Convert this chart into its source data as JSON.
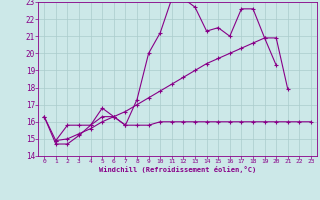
{
  "xlabel": "Windchill (Refroidissement éolien,°C)",
  "bg_color": "#cce8e8",
  "grid_color": "#aacccc",
  "line_color": "#880088",
  "xlim": [
    -0.5,
    23.5
  ],
  "ylim": [
    14,
    23
  ],
  "xticks": [
    0,
    1,
    2,
    3,
    4,
    5,
    6,
    7,
    8,
    9,
    10,
    11,
    12,
    13,
    14,
    15,
    16,
    17,
    18,
    19,
    20,
    21,
    22,
    23
  ],
  "yticks": [
    14,
    15,
    16,
    17,
    18,
    19,
    20,
    21,
    22,
    23
  ],
  "line1_x": [
    0,
    1,
    2,
    3,
    4,
    5,
    6,
    7,
    8,
    9,
    10,
    11,
    12,
    13,
    14,
    15,
    16,
    17,
    18,
    19,
    20
  ],
  "line1_y": [
    16.3,
    14.9,
    15.8,
    15.8,
    15.8,
    16.8,
    16.3,
    15.8,
    17.3,
    20.0,
    21.2,
    23.2,
    23.2,
    22.7,
    21.3,
    21.5,
    21.0,
    22.6,
    22.6,
    20.9,
    19.3
  ],
  "line2_x": [
    0,
    1,
    2,
    3,
    4,
    5,
    6,
    7,
    8,
    9,
    10,
    11,
    12,
    13,
    14,
    15,
    16,
    17,
    18,
    19,
    20,
    21,
    22,
    23
  ],
  "line2_y": [
    16.3,
    14.7,
    14.7,
    15.2,
    15.8,
    16.3,
    16.3,
    15.8,
    15.8,
    15.8,
    16.0,
    16.0,
    16.0,
    16.0,
    16.0,
    16.0,
    16.0,
    16.0,
    16.0,
    16.0,
    16.0,
    16.0,
    16.0,
    16.0
  ],
  "line3_x": [
    1,
    2,
    3,
    4,
    5,
    6,
    7,
    8,
    9,
    10,
    11,
    12,
    13,
    14,
    15,
    16,
    17,
    18,
    19,
    20,
    21
  ],
  "line3_y": [
    14.9,
    15.0,
    15.3,
    15.6,
    16.0,
    16.3,
    16.6,
    17.0,
    17.4,
    17.8,
    18.2,
    18.6,
    19.0,
    19.4,
    19.7,
    20.0,
    20.3,
    20.6,
    20.9,
    20.9,
    17.9
  ]
}
